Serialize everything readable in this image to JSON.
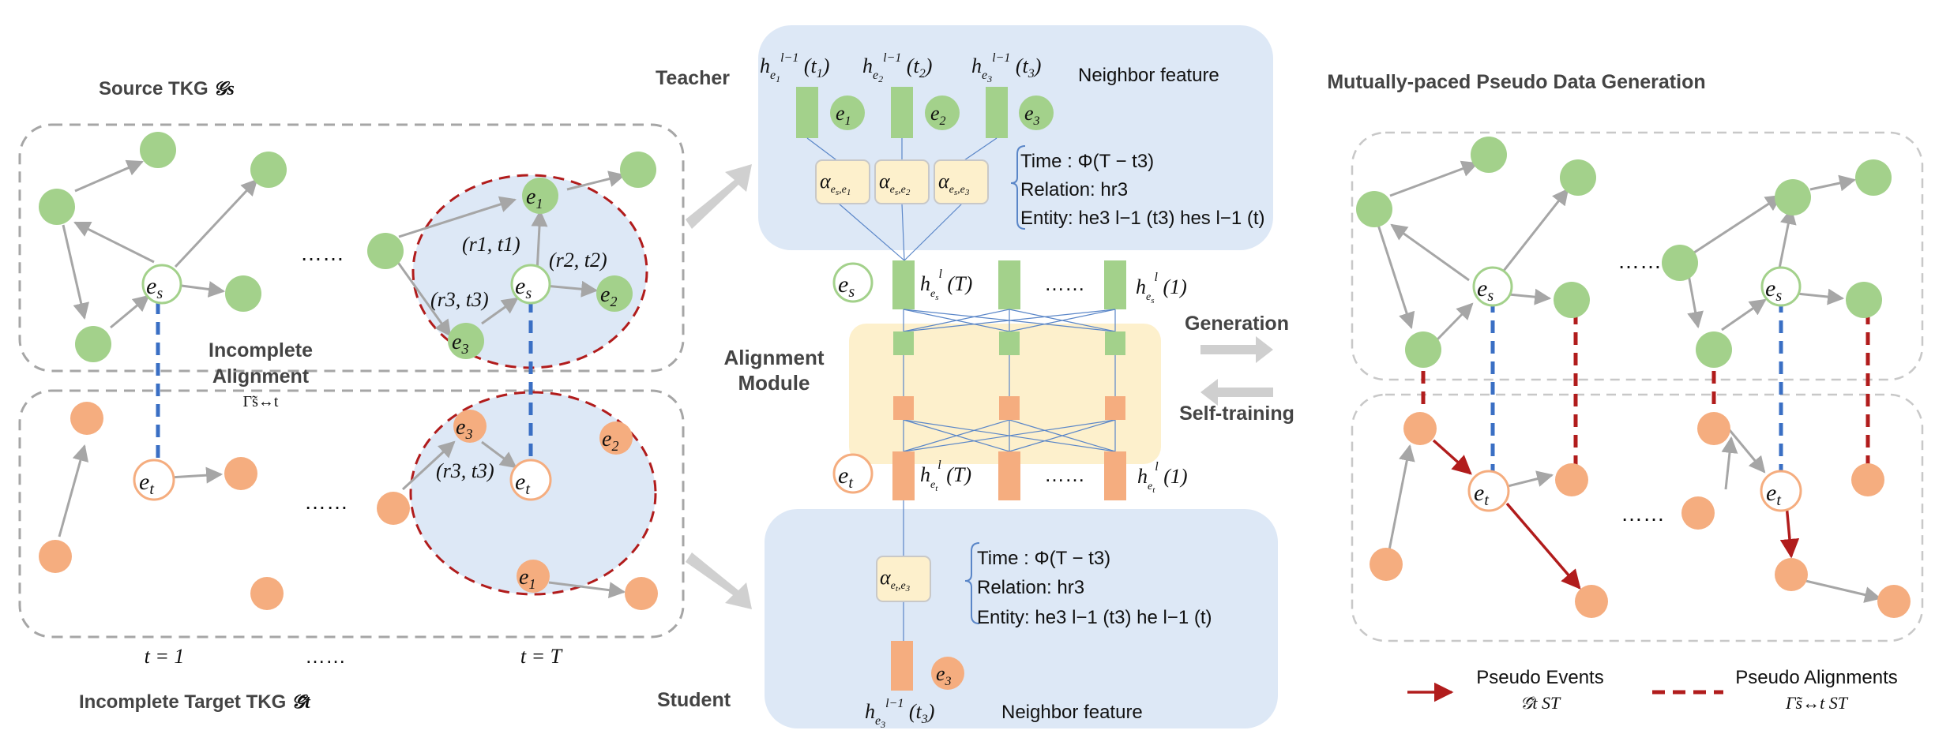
{
  "left_panel": {
    "source_title": "Source TKG",
    "source_symbol": "𝒢s",
    "target_title": "Incomplete Target TKG",
    "target_symbol": "𝒢̃t",
    "alignment_label_1": "Incomplete",
    "alignment_label_2": "Alignment",
    "alignment_symbol": "Γ̃s↔t",
    "time_first": "t = 1",
    "time_last": "t = T",
    "ellipsis": "……",
    "edge_r1": "(r1, t1)",
    "edge_r2": "(r2, t2)",
    "edge_r3_src": "(r3, t3)",
    "edge_r3_tgt": "(r3, t3)"
  },
  "center_panel": {
    "teacher_label": "Teacher",
    "student_label": "Student",
    "alignment_module_1": "Alignment",
    "alignment_module_2": "Module",
    "neighbor_feature_top": "Neighbor feature",
    "neighbor_feature_bottom": "Neighbor feature",
    "teacher_time": "Time : Φ(T − t3)",
    "teacher_relation": "Relation: hr3",
    "teacher_entity": "Entity: he3 l−1 (t3) hes l−1 (t)",
    "student_time": "Time : Φ(T − t3)",
    "student_relation": "Relation: hr3",
    "student_entity": "Entity: he3 l−1 (t3) he l−1 (t)",
    "ellipsis": "……"
  },
  "right_panel": {
    "title": "Mutually-paced Pseudo Data Generation",
    "generation": "Generation",
    "self_training": "Self-training",
    "legend_events": "Pseudo Events",
    "legend_events_symbol": "𝒢̃t ST",
    "legend_alignments": "Pseudo Alignments",
    "legend_alignments_symbol": "Γ̃s↔t ST",
    "ellipsis": "……"
  },
  "colors": {
    "green": "#a3d18b",
    "orange": "#f5ad7f",
    "blue_panel": "#dde8f6",
    "yellow_panel": "#fdf0cc",
    "red_dash": "#b11c1c",
    "blue_dash": "#3a6fc4",
    "gray_edge": "#a6a6a6"
  }
}
